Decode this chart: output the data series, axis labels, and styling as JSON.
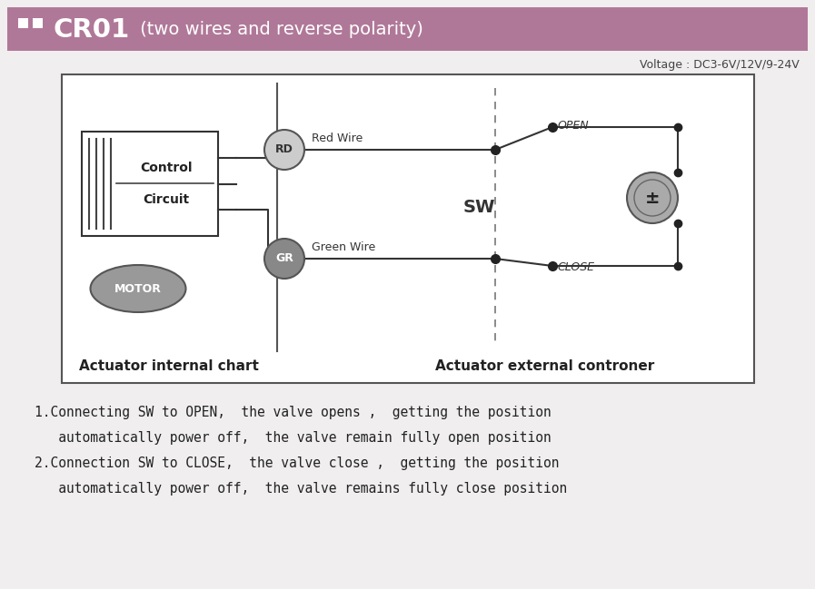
{
  "title_text": "CR01",
  "title_subtitle": " (two wires and reverse polarity)",
  "title_bg_color": "#b07898",
  "title_text_color": "#ffffff",
  "voltage_text": "Voltage : DC3-6V/12V/9-24V",
  "bg_color": "#f0eeee",
  "diagram_border": "#555555",
  "label_internal": "Actuator internal chart",
  "label_external": "Actuator external controner",
  "line1": "1.Connecting SW to OPEN,  the valve opens ,  getting the position",
  "line2": "   automatically power off,  the valve remain fully open position",
  "line3": "2.Connection SW to CLOSE,  the valve close ,  getting the position",
  "line4": "   automatically power off,  the valve remains fully close position"
}
